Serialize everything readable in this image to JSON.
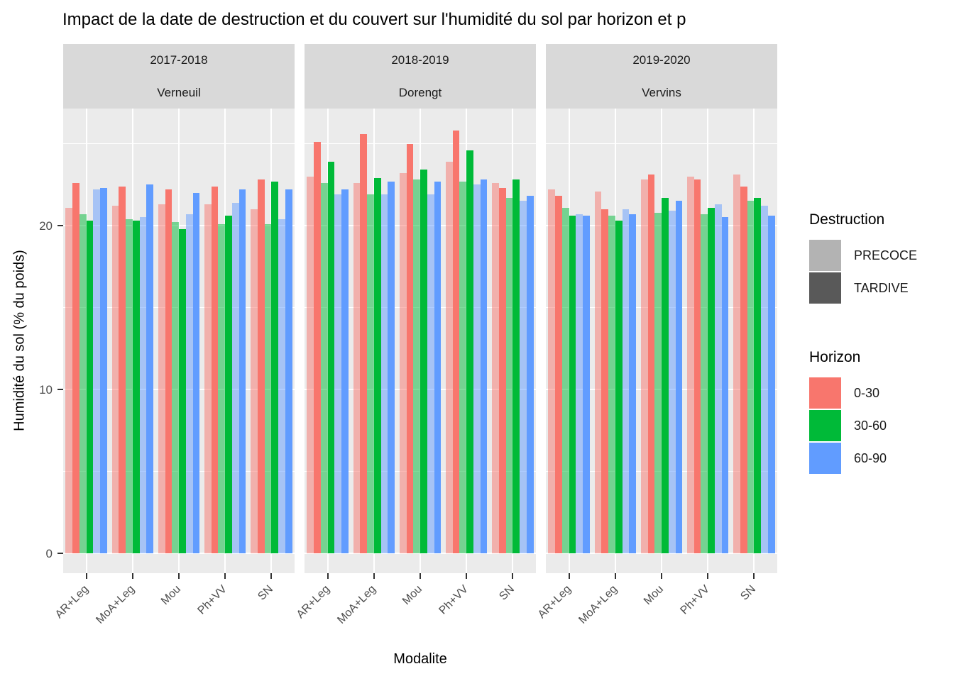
{
  "title": "Impact de la date de destruction et du couvert  sur l'humidité du sol par horizon et p",
  "axes": {
    "x_title": "Modalite",
    "y_title": "Humidité du sol (% du poids)",
    "y_tick_labels": [
      "0",
      "10",
      "20"
    ]
  },
  "legend": {
    "destruction": {
      "title": "Destruction",
      "items": [
        {
          "label": "PRECOCE",
          "color": "#B3B3B3"
        },
        {
          "label": "TARDIVE",
          "color": "#595959"
        }
      ]
    },
    "horizon": {
      "title": "Horizon",
      "items": [
        {
          "label": "0-30",
          "color": "#F8766D"
        },
        {
          "label": "30-60",
          "color": "#00BA38"
        },
        {
          "label": "60-90",
          "color": "#619CFF"
        }
      ]
    }
  },
  "chart_data": {
    "type": "bar",
    "title": "Impact de la date de destruction et du couvert  sur l'humidité du sol par horizon et p",
    "xlabel": "Modalite",
    "ylabel": "Humidité du sol (% du poids)",
    "ylim": [
      0,
      27.1
    ],
    "y_major_ticks": [
      0,
      10,
      20
    ],
    "y_minor_ticks": [
      5,
      15,
      25
    ],
    "grid": true,
    "legend_position": "right",
    "categories": [
      "AR+Leg",
      "MoA+Leg",
      "Mou",
      "Ph+VV",
      "SN"
    ],
    "horizons": [
      {
        "label": "0-30",
        "color": "#F8766D"
      },
      {
        "label": "30-60",
        "color": "#00BA38"
      },
      {
        "label": "60-90",
        "color": "#619CFF"
      }
    ],
    "destruction_levels": [
      "PRECOCE",
      "TARDIVE"
    ],
    "precoce_alpha": 0.5,
    "bar_order": [
      "PRECOCE 0-30",
      "TARDIVE 0-30",
      "PRECOCE 30-60",
      "TARDIVE 30-60",
      "PRECOCE 60-90",
      "TARDIVE 60-90"
    ],
    "facets": [
      {
        "year": "2017-2018",
        "site": "Verneuil",
        "groups": [
          {
            "modalite": "AR+Leg",
            "values": [
              21.1,
              22.6,
              20.7,
              20.3,
              22.2,
              22.3
            ]
          },
          {
            "modalite": "MoA+Leg",
            "values": [
              21.2,
              22.4,
              20.4,
              20.3,
              20.5,
              22.5
            ]
          },
          {
            "modalite": "Mou",
            "values": [
              21.3,
              22.2,
              20.2,
              19.8,
              20.7,
              22.0
            ]
          },
          {
            "modalite": "Ph+VV",
            "values": [
              21.3,
              22.4,
              20.1,
              20.6,
              21.4,
              22.2
            ]
          },
          {
            "modalite": "SN",
            "values": [
              21.0,
              22.8,
              20.1,
              22.7,
              20.4,
              22.2
            ]
          }
        ]
      },
      {
        "year": "2018-2019",
        "site": "Dorengt",
        "groups": [
          {
            "modalite": "AR+Leg",
            "values": [
              23.0,
              25.1,
              22.6,
              23.9,
              21.9,
              22.2
            ]
          },
          {
            "modalite": "MoA+Leg",
            "values": [
              22.6,
              25.6,
              21.9,
              22.9,
              21.9,
              22.7
            ]
          },
          {
            "modalite": "Mou",
            "values": [
              23.2,
              25.0,
              22.8,
              23.4,
              21.9,
              22.7
            ]
          },
          {
            "modalite": "Ph+VV",
            "values": [
              23.9,
              25.8,
              22.7,
              24.6,
              22.5,
              22.8
            ]
          },
          {
            "modalite": "SN",
            "values": [
              22.6,
              22.3,
              21.7,
              22.8,
              21.5,
              21.8
            ]
          }
        ]
      },
      {
        "year": "2019-2020",
        "site": "Vervins",
        "groups": [
          {
            "modalite": "AR+Leg",
            "values": [
              22.2,
              21.8,
              21.1,
              20.6,
              20.7,
              20.6
            ]
          },
          {
            "modalite": "MoA+Leg",
            "values": [
              22.1,
              21.0,
              20.6,
              20.3,
              21.0,
              20.7
            ]
          },
          {
            "modalite": "Mou",
            "values": [
              22.8,
              23.1,
              20.8,
              21.7,
              20.9,
              21.5
            ]
          },
          {
            "modalite": "Ph+VV",
            "values": [
              23.0,
              22.8,
              20.7,
              21.1,
              21.3,
              20.5
            ]
          },
          {
            "modalite": "SN",
            "values": [
              23.1,
              22.4,
              21.5,
              21.7,
              21.2,
              20.6
            ]
          }
        ]
      }
    ]
  }
}
